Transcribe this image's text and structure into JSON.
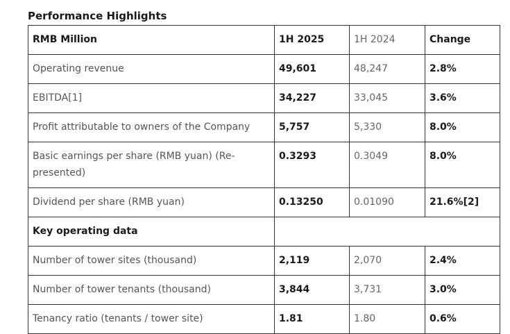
{
  "title": "Performance Highlights",
  "header": {
    "label": "RMB Million",
    "col_current": "1H 2025",
    "col_prior": "1H 2024",
    "col_change": "Change"
  },
  "rows": [
    {
      "label": "Operating revenue",
      "current": "49,601",
      "prior": "48,247",
      "change": "2.8%"
    },
    {
      "label": "EBITDA[1]",
      "current": "34,227",
      "prior": "33,045",
      "change": "3.6%"
    },
    {
      "label": "Profit attributable to owners of the Company",
      "current": "5,757",
      "prior": "5,330",
      "change": "8.0%"
    },
    {
      "label": "Basic earnings per share (RMB yuan) (Re-presented)",
      "current": "0.3293",
      "prior": "0.3049",
      "change": "8.0%"
    },
    {
      "label": "Dividend per share (RMB yuan)",
      "current": "0.13250",
      "prior": "0.01090",
      "change": "21.6%[2]"
    }
  ],
  "section": {
    "label": "Key operating data"
  },
  "operating_rows": [
    {
      "label": "Number of tower sites (thousand)",
      "current": "2,119",
      "prior": "2,070",
      "change": "2.4%"
    },
    {
      "label": "Number of tower tenants (thousand)",
      "current": "3,844",
      "prior": "3,731",
      "change": "3.0%"
    },
    {
      "label": "Tenancy ratio (tenants / tower site)",
      "current": "1.81",
      "prior": "1.80",
      "change": "0.6%"
    }
  ]
}
